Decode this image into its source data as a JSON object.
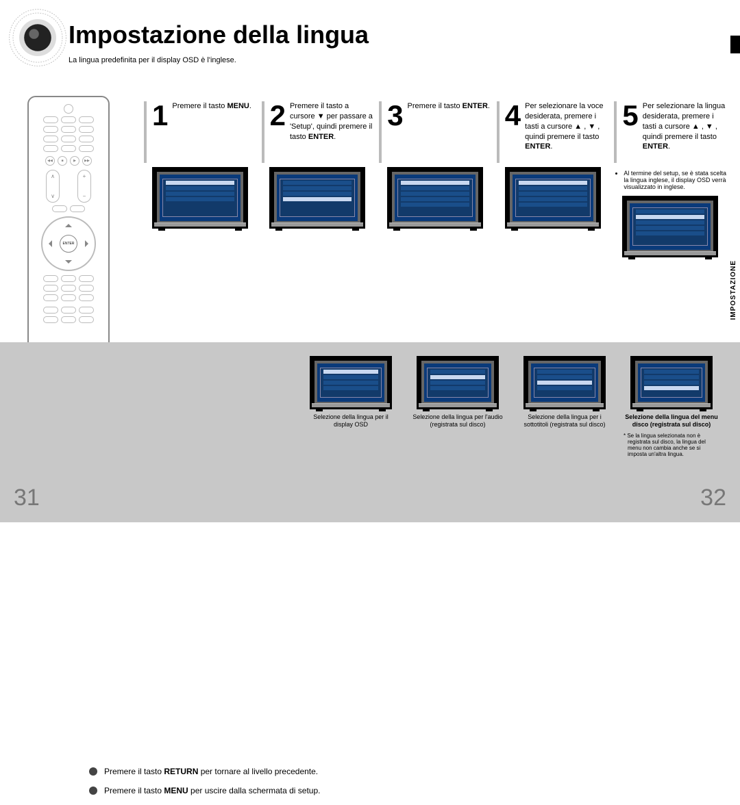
{
  "title": "Impostazione della lingua",
  "subtitle": "La lingua predefinita per il display OSD è l'inglese.",
  "side_tab": "IMPOSTAZIONE",
  "page_left": "31",
  "page_right": "32",
  "remote": {
    "enter_label": "ENTER"
  },
  "steps": [
    {
      "num": "1",
      "text": "Premere il tasto <b>MENU</b>."
    },
    {
      "num": "2",
      "text": "Premere il tasto a cursore ▼ per passare a 'Setup', quindi premere il tasto <b>ENTER</b>."
    },
    {
      "num": "3",
      "text": "Premere il tasto <b>ENTER</b>."
    },
    {
      "num": "4",
      "text": "Per selezionare la voce desiderata, premere i tasti a cursore ▲ , ▼ , quindi premere il tasto <b>ENTER</b>."
    },
    {
      "num": "5",
      "text": "Per selezionare la lingua desiderata, premere i tasti a cursore ▲ , ▼ , quindi premere il tasto <b>ENTER</b>."
    }
  ],
  "step5_notes": [
    "Al termine del setup, se è stata scelta la lingua inglese, il display OSD verrà visualizzato in inglese."
  ],
  "lower_captions": [
    {
      "text": "Selezione della lingua per il display OSD",
      "bold": false
    },
    {
      "text": "Selezione della lingua per l'audio (registrata sul disco)",
      "bold": false
    },
    {
      "text": "Selezione della lingua per i sottotitoli (registrata sul disco)",
      "bold": false
    },
    {
      "text": "Selezione della lingua del menu disco (registrata sul disco)",
      "bold": true
    }
  ],
  "lower_footnote": "Se la lingua selezionata non è registrata sul disco, la lingua del menu non cambia anche se si imposta un'altra lingua.",
  "hints": [
    "Premere il tasto <b>RETURN</b> per tornare al livello precedente.",
    "Premere il tasto <b>MENU</b> per uscire dalla schermata di setup."
  ],
  "colors": {
    "band": "#c8c8c8",
    "screen": "#0a3a7a",
    "menu": "#123a6a",
    "row": "#1a4e8a",
    "row_hl": "#c8d8f0"
  }
}
